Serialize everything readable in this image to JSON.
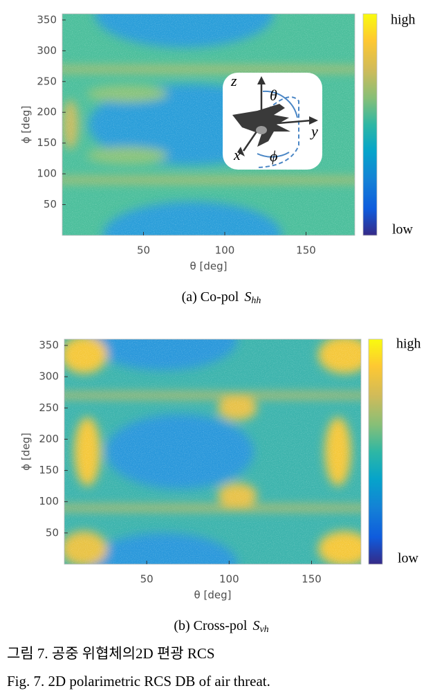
{
  "chart_data": [
    {
      "type": "heatmap",
      "colormap": "parula",
      "xlabel": "θ [deg]",
      "ylabel": "ϕ [deg]",
      "xlim": [
        0,
        180
      ],
      "ylim": [
        0,
        360
      ],
      "xticks": [
        50,
        100,
        150
      ],
      "yticks": [
        50,
        100,
        150,
        200,
        250,
        300,
        350
      ],
      "colorbar": {
        "high": "high",
        "low": "low"
      },
      "caption": {
        "prefix": "(a)  Co-pol",
        "symbol": "S",
        "subscript": "hh"
      },
      "inset_labels": {
        "z": "z",
        "theta": "θ",
        "y": "y",
        "x": "x",
        "phi": "ϕ"
      }
    },
    {
      "type": "heatmap",
      "colormap": "parula",
      "xlabel": "θ [deg]",
      "ylabel": "ϕ [deg]",
      "xlim": [
        0,
        180
      ],
      "ylim": [
        0,
        360
      ],
      "xticks": [
        50,
        100,
        150
      ],
      "yticks": [
        50,
        100,
        150,
        200,
        250,
        300,
        350
      ],
      "colorbar": {
        "high": "high",
        "low": "low"
      },
      "caption": {
        "prefix": "(b)  Cross-pol",
        "symbol": "S",
        "subscript": "vh"
      }
    }
  ],
  "figure_caption_kr": "그림 7. 공중 위협체의2D 편광 RCS",
  "figure_caption_en": "Fig. 7. 2D polarimetric RCS DB of air threat."
}
